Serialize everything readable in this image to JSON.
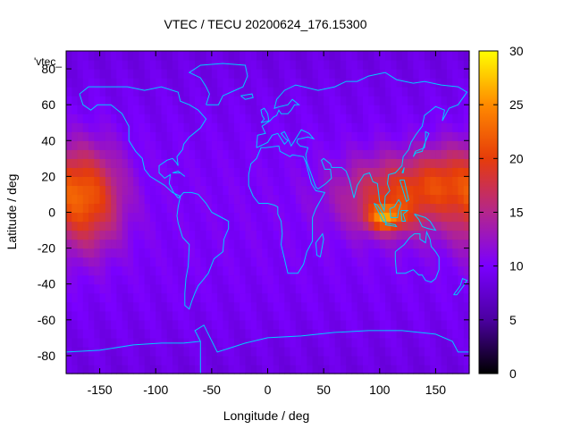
{
  "chart_data": {
    "type": "heatmap",
    "title": "VTEC / TECU 20200624_176.15300",
    "xlabel": "Longitude / deg",
    "ylabel": "Latitude / deg",
    "legend_key": "'vtec_",
    "xlim": [
      -180,
      180
    ],
    "ylim": [
      -90,
      90
    ],
    "x_ticks": [
      -150,
      -100,
      -50,
      0,
      50,
      100,
      150
    ],
    "y_ticks": [
      -80,
      -60,
      -40,
      -20,
      0,
      20,
      40,
      60,
      80
    ],
    "colorbar": {
      "range": [
        0,
        30
      ],
      "ticks": [
        0,
        5,
        10,
        15,
        20,
        25,
        30
      ],
      "palette": [
        "#000000",
        "#4b00a0",
        "#7a00ff",
        "#b4268c",
        "#e63c0a",
        "#ff8a00",
        "#ffff00"
      ]
    },
    "grid": false,
    "background_vtec": 8.5,
    "enhancement_regions": [
      {
        "name": "",
        "lon": -162,
        "lat": 8,
        "lon_sigma": 22,
        "lat_sigma": 20,
        "amplitude": 11
      },
      {
        "name": "",
        "lon": 120,
        "lat": 10,
        "lon_sigma": 38,
        "lat_sigma": 15,
        "amplitude": 10
      },
      {
        "name": "",
        "lon": 105,
        "lat": -3,
        "lon_sigma": 12,
        "lat_sigma": 5,
        "amplitude": 10
      },
      {
        "name": "",
        "lon": 158,
        "lat": 22,
        "lon_sigma": 18,
        "lat_sigma": 12,
        "amplitude": 4
      }
    ],
    "coastline_color": "#00ccff"
  }
}
